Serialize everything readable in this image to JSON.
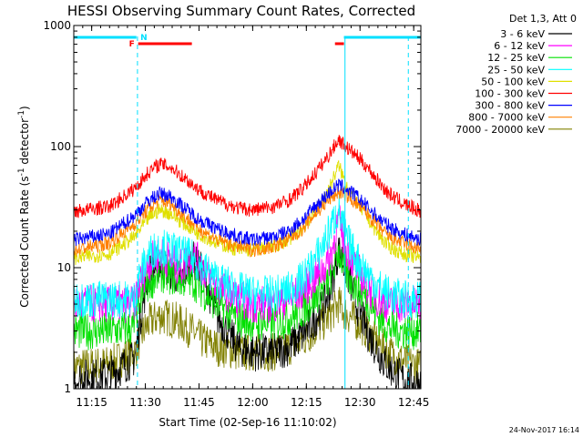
{
  "chart_data": {
    "type": "line",
    "title": "HESSI Observing Summary Count Rates, Corrected",
    "xlabel": "Start Time (02-Sep-16 11:10:02)",
    "ylabel_parts": [
      "Corrected Count Rate (s",
      "-1",
      " detector",
      "-1",
      ")"
    ],
    "yscale": "log",
    "ylim": [
      1,
      1000
    ],
    "xlim_minutes": [
      0,
      97
    ],
    "ytick_labels": [
      {
        "value": 1,
        "label": "1"
      },
      {
        "value": 10,
        "label": "10"
      },
      {
        "value": 100,
        "label": "100"
      },
      {
        "value": 1000,
        "label": "1000"
      }
    ],
    "xtick_labels": [
      {
        "minutes": 5,
        "label": "11:15"
      },
      {
        "minutes": 20,
        "label": "11:30"
      },
      {
        "minutes": 35,
        "label": "11:45"
      },
      {
        "minutes": 50,
        "label": "12:00"
      },
      {
        "minutes": 65,
        "label": "12:15"
      },
      {
        "minutes": 80,
        "label": "12:30"
      },
      {
        "minutes": 95,
        "label": "12:45"
      }
    ],
    "legend": {
      "header": "Det 1,3, Att 0",
      "placement": "right"
    },
    "series": [
      {
        "name": "3 - 6 keV",
        "color": "#000000",
        "x": [
          0,
          10,
          17,
          19,
          21,
          24,
          30,
          33,
          36,
          40,
          46,
          50,
          56,
          60,
          64,
          67,
          70,
          72,
          74,
          76,
          79,
          82,
          85,
          88,
          92,
          97
        ],
        "y": [
          1.2,
          1.3,
          1.8,
          4.5,
          9,
          11,
          8,
          12,
          9,
          4,
          2.2,
          2,
          2,
          2.2,
          2.8,
          3.6,
          5,
          7,
          14,
          10,
          5,
          3,
          2,
          1.5,
          1.2,
          1.1
        ]
      },
      {
        "name": "6 - 12 keV",
        "color": "#ff00ff",
        "x": [
          0,
          10,
          17,
          18,
          21,
          24,
          30,
          33,
          36,
          40,
          46,
          50,
          56,
          60,
          64,
          67,
          70,
          72,
          74,
          76,
          79,
          82,
          85,
          88,
          92,
          97
        ],
        "y": [
          5,
          5,
          5,
          7,
          11,
          13,
          10,
          13,
          10,
          7,
          5.5,
          5,
          5,
          5.5,
          6.5,
          8,
          10,
          13,
          25,
          15,
          10,
          7,
          5.5,
          5,
          5,
          5
        ]
      },
      {
        "name": "12 - 25 keV",
        "color": "#00e000",
        "x": [
          0,
          10,
          17,
          18,
          21,
          24,
          30,
          33,
          36,
          40,
          46,
          50,
          56,
          60,
          64,
          67,
          70,
          72,
          74,
          76,
          79,
          82,
          85,
          88,
          92,
          97
        ],
        "y": [
          3,
          3,
          3.2,
          5,
          7.5,
          9,
          8,
          8,
          6.5,
          5,
          3.8,
          3.5,
          3.5,
          3.8,
          4.5,
          5.5,
          7,
          8.5,
          14,
          9,
          7,
          5.5,
          4,
          3.2,
          3,
          3
        ]
      },
      {
        "name": "25 - 50 keV",
        "color": "#00ffff",
        "x": [
          0,
          10,
          17,
          18,
          21,
          24,
          30,
          33,
          36,
          40,
          46,
          50,
          56,
          60,
          64,
          67,
          70,
          72,
          74,
          76,
          79,
          82,
          85,
          88,
          92,
          97
        ],
        "y": [
          5.5,
          5.5,
          5.5,
          8,
          13,
          15,
          13,
          12,
          10,
          8,
          6.5,
          6,
          6,
          6.5,
          8,
          11,
          16,
          22,
          30,
          18,
          12,
          9,
          7,
          6,
          5.5,
          5.5
        ]
      },
      {
        "name": "50 - 100 keV",
        "color": "#e0e000",
        "x": [
          0,
          10,
          17,
          21,
          24,
          27,
          30,
          35,
          40,
          46,
          50,
          56,
          60,
          64,
          67,
          70,
          72,
          74,
          76,
          79,
          82,
          85,
          88,
          92,
          97
        ],
        "y": [
          12,
          13,
          18,
          26,
          30,
          28,
          24,
          19,
          16,
          14,
          14,
          15,
          17,
          21,
          28,
          38,
          50,
          70,
          50,
          35,
          26,
          19,
          15,
          13,
          12
        ]
      },
      {
        "name": "100 - 300 keV",
        "color": "#ff0000",
        "x": [
          0,
          10,
          17,
          21,
          24,
          27,
          30,
          35,
          40,
          46,
          50,
          56,
          60,
          64,
          67,
          70,
          72,
          74,
          76,
          79,
          82,
          85,
          88,
          92,
          97
        ],
        "y": [
          29,
          32,
          45,
          62,
          72,
          68,
          58,
          44,
          36,
          31,
          30,
          32,
          36,
          45,
          58,
          75,
          92,
          115,
          100,
          84,
          68,
          52,
          41,
          34,
          29
        ]
      },
      {
        "name": "300 - 800 keV",
        "color": "#0000ff",
        "x": [
          0,
          10,
          17,
          21,
          24,
          27,
          30,
          35,
          40,
          46,
          50,
          56,
          60,
          64,
          67,
          70,
          72,
          74,
          76,
          79,
          82,
          85,
          88,
          92,
          97
        ],
        "y": [
          17,
          19,
          27,
          36,
          41,
          39,
          33,
          25,
          21,
          18,
          17,
          18,
          20,
          25,
          31,
          38,
          43,
          48,
          45,
          39,
          32,
          26,
          22,
          19,
          17
        ]
      },
      {
        "name": "800 - 7000 keV",
        "color": "#ff8000",
        "x": [
          0,
          10,
          17,
          21,
          24,
          27,
          30,
          35,
          40,
          46,
          50,
          56,
          60,
          64,
          67,
          70,
          72,
          74,
          76,
          79,
          82,
          85,
          88,
          92,
          97
        ],
        "y": [
          14,
          16,
          23,
          31,
          36,
          34,
          28,
          21,
          17,
          15,
          14,
          15,
          17,
          21,
          27,
          33,
          38,
          42,
          40,
          34,
          28,
          22,
          18,
          16,
          14
        ]
      },
      {
        "name": "7000 - 20000 keV",
        "color": "#808000",
        "x": [
          0,
          10,
          17,
          19,
          21,
          24,
          27,
          30,
          33,
          36,
          40,
          46,
          50,
          56,
          60,
          64,
          67,
          70,
          72,
          74,
          76,
          79,
          82,
          85,
          88,
          92,
          97
        ],
        "y": [
          1.5,
          1.6,
          2,
          2.8,
          3.5,
          4,
          3.8,
          3.5,
          3,
          2.5,
          2.2,
          2,
          2,
          2,
          2.2,
          2.5,
          3,
          3.6,
          4.2,
          5,
          4.2,
          3.6,
          3,
          2.4,
          2,
          1.7,
          1.5
        ]
      }
    ],
    "annotations": {
      "night_intervals_minutes": [
        [
          0,
          17.5
        ],
        [
          75.5,
          97
        ]
      ],
      "flare_intervals_minutes": [
        [
          18,
          33
        ],
        [
          73,
          75.5
        ]
      ],
      "flare_letter": "F",
      "night_letter": "N",
      "vertical_lines_minutes": [
        {
          "minutes": 17.8,
          "style": "dashed"
        },
        {
          "minutes": 75.8,
          "style": "solid"
        },
        {
          "minutes": 93.5,
          "style": "dashed"
        }
      ]
    },
    "colors": {
      "night_bar": "#00e0ff",
      "flare_bar": "#ff0000"
    }
  },
  "footer": {
    "timestamp": "24-Nov-2017 16:14"
  }
}
